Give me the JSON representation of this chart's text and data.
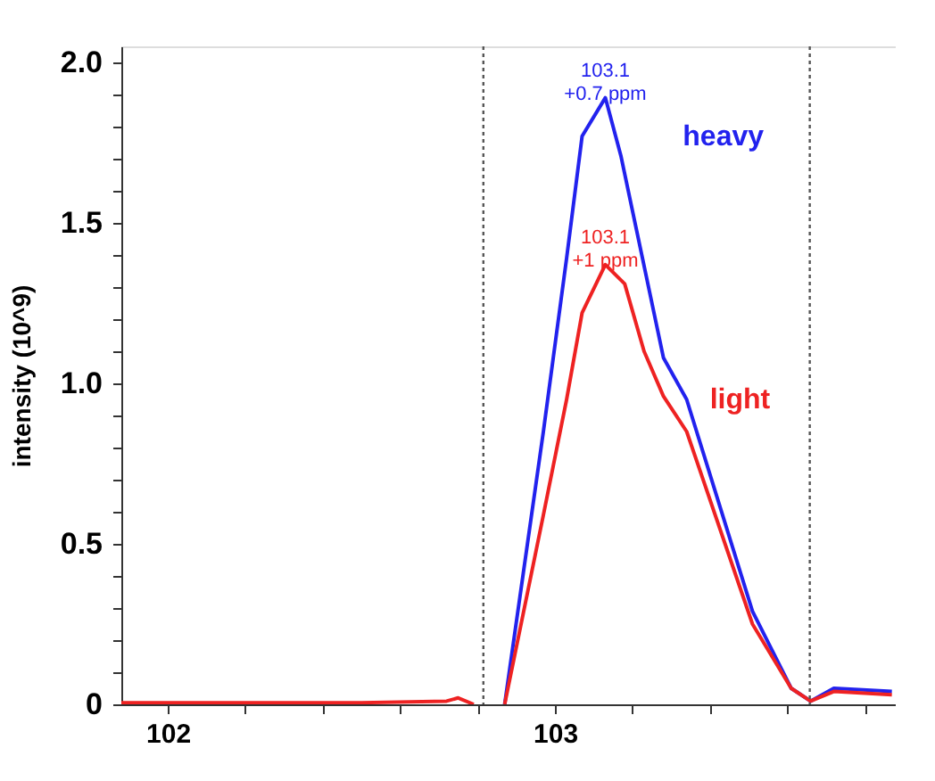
{
  "chart_data": {
    "type": "line",
    "ylabel": "intensity (10^9)",
    "xlim": [
      101.88,
      103.88
    ],
    "xticks": [
      102,
      {
        "value": 102.2,
        "label": null
      },
      {
        "value": 102.4,
        "label": null
      },
      {
        "value": 102.6,
        "label": null
      },
      {
        "value": 102.8,
        "label": null
      },
      103,
      {
        "value": 103.2,
        "label": null
      },
      {
        "value": 103.4,
        "label": null
      },
      {
        "value": 103.6,
        "label": null
      },
      {
        "value": 103.8,
        "label": null
      }
    ],
    "ylim": [
      0,
      2.05
    ],
    "yticks": [
      0,
      {
        "value": 0.1,
        "label": null
      },
      {
        "value": 0.2,
        "label": null
      },
      {
        "value": 0.3,
        "label": null
      },
      {
        "value": 0.4,
        "label": null
      },
      0.5,
      {
        "value": 0.6,
        "label": null
      },
      {
        "value": 0.7,
        "label": null
      },
      {
        "value": 0.8,
        "label": null
      },
      {
        "value": 0.9,
        "label": null
      },
      {
        "value": 1.0,
        "label": "1.0"
      },
      {
        "value": 1.1,
        "label": null
      },
      {
        "value": 1.2,
        "label": null
      },
      {
        "value": 1.3,
        "label": null
      },
      {
        "value": 1.4,
        "label": null
      },
      1.5,
      {
        "value": 1.6,
        "label": null
      },
      {
        "value": 1.7,
        "label": null
      },
      {
        "value": 1.8,
        "label": null
      },
      {
        "value": 1.9,
        "label": null
      },
      {
        "value": 2.0,
        "label": "2.0"
      }
    ],
    "grid": false,
    "legend": false,
    "line_style": "solid",
    "marker": "none",
    "series": [
      {
        "name": "heavy",
        "color": "#2222ee",
        "x": [
          102.87,
          102.97,
          103.03,
          103.07,
          103.13,
          103.17,
          103.28,
          103.34,
          103.51,
          103.61,
          103.66,
          103.72,
          103.87
        ],
        "values": [
          0.0,
          0.85,
          1.39,
          1.77,
          1.89,
          1.71,
          1.08,
          0.95,
          0.29,
          0.05,
          0.01,
          0.05,
          0.04
        ]
      },
      {
        "name": "light",
        "color": "#ee2222",
        "x": [
          101.88,
          102.5,
          102.72,
          102.75,
          102.79,
          102.8,
          102.87,
          102.97,
          103.03,
          103.07,
          103.13,
          103.18,
          103.23,
          103.28,
          103.34,
          103.51,
          103.61,
          103.66,
          103.72,
          103.87
        ],
        "values": [
          0.005,
          0.005,
          0.01,
          0.02,
          0.0,
          null,
          0.0,
          0.59,
          0.95,
          1.22,
          1.37,
          1.31,
          1.1,
          0.96,
          0.85,
          0.25,
          0.05,
          0.01,
          0.04,
          0.03
        ]
      }
    ],
    "annotations": [
      {
        "text": "103.1\n+0.7 ppm",
        "x": 103.13,
        "y": 1.89
      },
      {
        "text": "103.1\n+1 ppm",
        "x": 103.13,
        "y": 1.37
      }
    ],
    "ref_lines": [
      {
        "axis": "x",
        "value": 102.815,
        "color": "#555555",
        "line_style": "dotted"
      },
      {
        "axis": "x",
        "value": 103.658,
        "color": "#555555",
        "line_style": "dotted"
      }
    ]
  }
}
